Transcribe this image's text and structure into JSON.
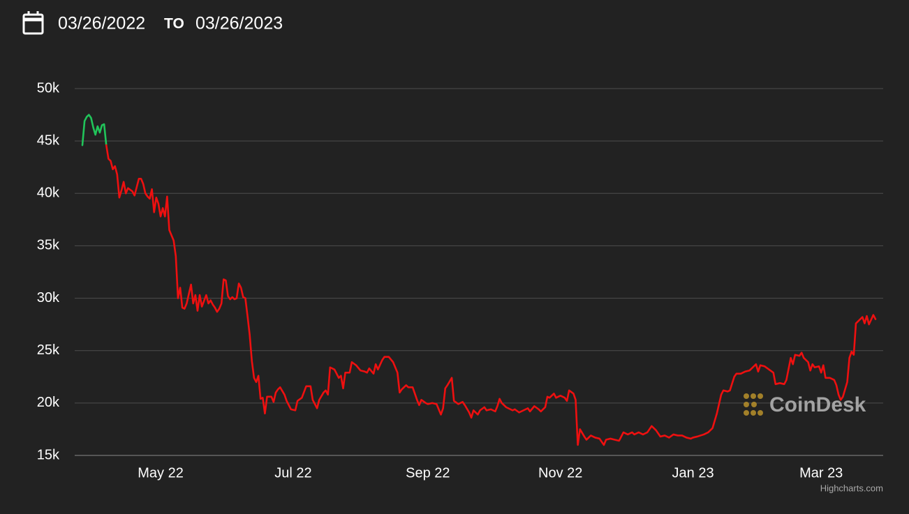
{
  "header": {
    "from": "03/26/2022",
    "separator": "TO",
    "to": "03/26/2023"
  },
  "chart_data": {
    "type": "line",
    "watermark": "CoinDesk",
    "credits": "Highcharts.com",
    "xlim": [
      0,
      365
    ],
    "xticks": [
      {
        "value": 36,
        "label": "May 22"
      },
      {
        "value": 97,
        "label": "Jul 22"
      },
      {
        "value": 159,
        "label": "Sep 22"
      },
      {
        "value": 220,
        "label": "Nov 22"
      },
      {
        "value": 281,
        "label": "Jan 23"
      },
      {
        "value": 340,
        "label": "Mar 23"
      }
    ],
    "ylim": [
      15000,
      50000
    ],
    "yticks": [
      {
        "value": 15000,
        "label": "15k"
      },
      {
        "value": 20000,
        "label": "20k"
      },
      {
        "value": 25000,
        "label": "25k"
      },
      {
        "value": 30000,
        "label": "30k"
      },
      {
        "value": 35000,
        "label": "35k"
      },
      {
        "value": 40000,
        "label": "40k"
      },
      {
        "value": 45000,
        "label": "45k"
      },
      {
        "value": 50000,
        "label": "50k"
      }
    ],
    "grid": true,
    "series": [
      {
        "color": "#21c45a",
        "x": [
          0,
          1,
          2,
          3,
          4,
          5,
          6,
          7,
          8,
          9,
          10,
          11
        ],
        "values": [
          44600,
          46900,
          47300,
          47500,
          47200,
          46300,
          45600,
          46400,
          45800,
          46500,
          46600,
          44600
        ]
      },
      {
        "color": "#ee1010",
        "x": [
          11,
          12,
          13,
          14,
          15,
          16,
          17,
          18,
          19,
          20,
          21,
          23,
          24,
          25,
          26,
          27,
          28,
          29,
          30,
          31,
          32,
          33,
          34,
          35,
          36,
          37,
          38,
          39,
          40,
          41,
          42,
          43,
          44,
          45,
          46,
          47,
          48,
          50,
          51,
          52,
          53,
          54,
          55,
          57,
          58,
          59,
          60,
          61,
          62,
          63,
          64,
          65,
          66,
          67,
          68,
          69,
          70,
          71,
          72,
          73,
          74,
          75,
          76,
          77,
          78,
          79,
          80,
          81,
          82,
          83,
          84,
          85,
          87,
          88,
          89,
          90,
          91,
          93,
          94,
          96,
          98,
          99,
          101,
          103,
          105,
          106,
          108,
          109,
          111,
          112,
          113,
          114,
          116,
          118,
          119,
          120,
          121,
          123,
          124,
          126,
          128,
          130,
          131,
          132,
          134,
          135,
          136,
          138,
          139,
          141,
          143,
          145,
          146,
          147,
          149,
          150,
          152,
          154,
          155,
          156,
          158,
          159,
          161,
          163,
          165,
          166,
          167,
          168,
          170,
          171,
          173,
          175,
          176,
          178,
          179,
          180,
          182,
          183,
          185,
          186,
          188,
          190,
          191,
          192,
          193,
          195,
          197,
          198,
          199,
          201,
          203,
          205,
          206,
          208,
          210,
          211,
          213,
          214,
          215,
          217,
          218,
          220,
          222,
          223,
          224,
          226,
          227,
          228,
          229,
          231,
          232,
          234,
          236,
          238,
          240,
          241,
          243,
          245,
          247,
          249,
          251,
          253,
          254,
          256,
          258,
          260,
          262,
          264,
          266,
          268,
          270,
          272,
          274,
          276,
          278,
          280,
          281,
          283,
          286,
          288,
          290,
          292,
          294,
          295,
          297,
          298,
          300,
          301,
          303,
          305,
          307,
          308,
          310,
          311,
          312,
          314,
          316,
          318,
          319,
          321,
          323,
          324,
          326,
          327,
          328,
          330,
          331,
          332,
          334,
          335,
          336,
          337,
          339,
          340,
          341,
          342,
          344,
          346,
          347,
          348,
          349,
          350,
          352,
          353,
          354,
          355,
          356,
          357,
          359,
          360,
          361,
          362,
          364,
          365
        ],
        "values": [
          44600,
          43300,
          43100,
          42300,
          42600,
          41800,
          39600,
          40300,
          41100,
          40000,
          40500,
          40200,
          39800,
          40600,
          41400,
          41400,
          40900,
          40000,
          39700,
          39500,
          40400,
          38200,
          39600,
          39000,
          37800,
          38600,
          37800,
          39700,
          36500,
          36000,
          35500,
          34000,
          30000,
          31000,
          29100,
          29000,
          29500,
          31300,
          29500,
          30300,
          28800,
          30300,
          29200,
          30300,
          29500,
          29800,
          29400,
          29100,
          28700,
          29000,
          29500,
          31800,
          31700,
          30200,
          29900,
          30100,
          29900,
          30000,
          31400,
          31000,
          30100,
          30000,
          28300,
          26500,
          24000,
          22400,
          22000,
          22600,
          20400,
          20500,
          19000,
          20600,
          20600,
          20100,
          21000,
          21300,
          21500,
          20800,
          20200,
          19400,
          19300,
          20200,
          20500,
          21600,
          21600,
          20300,
          19500,
          20300,
          21000,
          21200,
          20800,
          23400,
          23200,
          22400,
          22600,
          21400,
          22900,
          22900,
          23900,
          23600,
          23100,
          23000,
          22900,
          23300,
          22800,
          23700,
          23200,
          24100,
          24400,
          24400,
          23900,
          22900,
          21000,
          21300,
          21700,
          21500,
          21500,
          20300,
          19800,
          20300,
          20000,
          19900,
          20000,
          19900,
          18900,
          19500,
          21400,
          21700,
          22400,
          20200,
          19900,
          20100,
          19800,
          19100,
          18600,
          19300,
          18900,
          19300,
          19600,
          19300,
          19400,
          19200,
          19700,
          20400,
          20000,
          19600,
          19400,
          19300,
          19400,
          19100,
          19300,
          19500,
          19200,
          19700,
          19400,
          19200,
          19600,
          20600,
          20500,
          20900,
          20500,
          20700,
          20500,
          20200,
          21200,
          20900,
          20300,
          16000,
          17500,
          16800,
          16500,
          16900,
          16700,
          16600,
          16000,
          16500,
          16600,
          16500,
          16400,
          17200,
          17000,
          17200,
          17000,
          17200,
          17000,
          17200,
          17800,
          17400,
          16800,
          16900,
          16700,
          17000,
          16900,
          16900,
          16700,
          16600,
          16700,
          16800,
          17000,
          17200,
          17600,
          19000,
          20800,
          21200,
          21100,
          21200,
          22500,
          22800,
          22800,
          23000,
          23100,
          23300,
          23700,
          23000,
          23600,
          23500,
          23200,
          22900,
          21800,
          21900,
          21800,
          22200,
          24300,
          23700,
          24600,
          24500,
          24800,
          24300,
          23900,
          23100,
          23700,
          23400,
          23500,
          22900,
          23600,
          22400,
          22400,
          22200,
          21700,
          20800,
          20300,
          20600,
          22000,
          24300,
          24900,
          24600,
          27600,
          27800,
          28200,
          27600,
          28300,
          27500,
          28400,
          28000
        ]
      }
    ]
  }
}
